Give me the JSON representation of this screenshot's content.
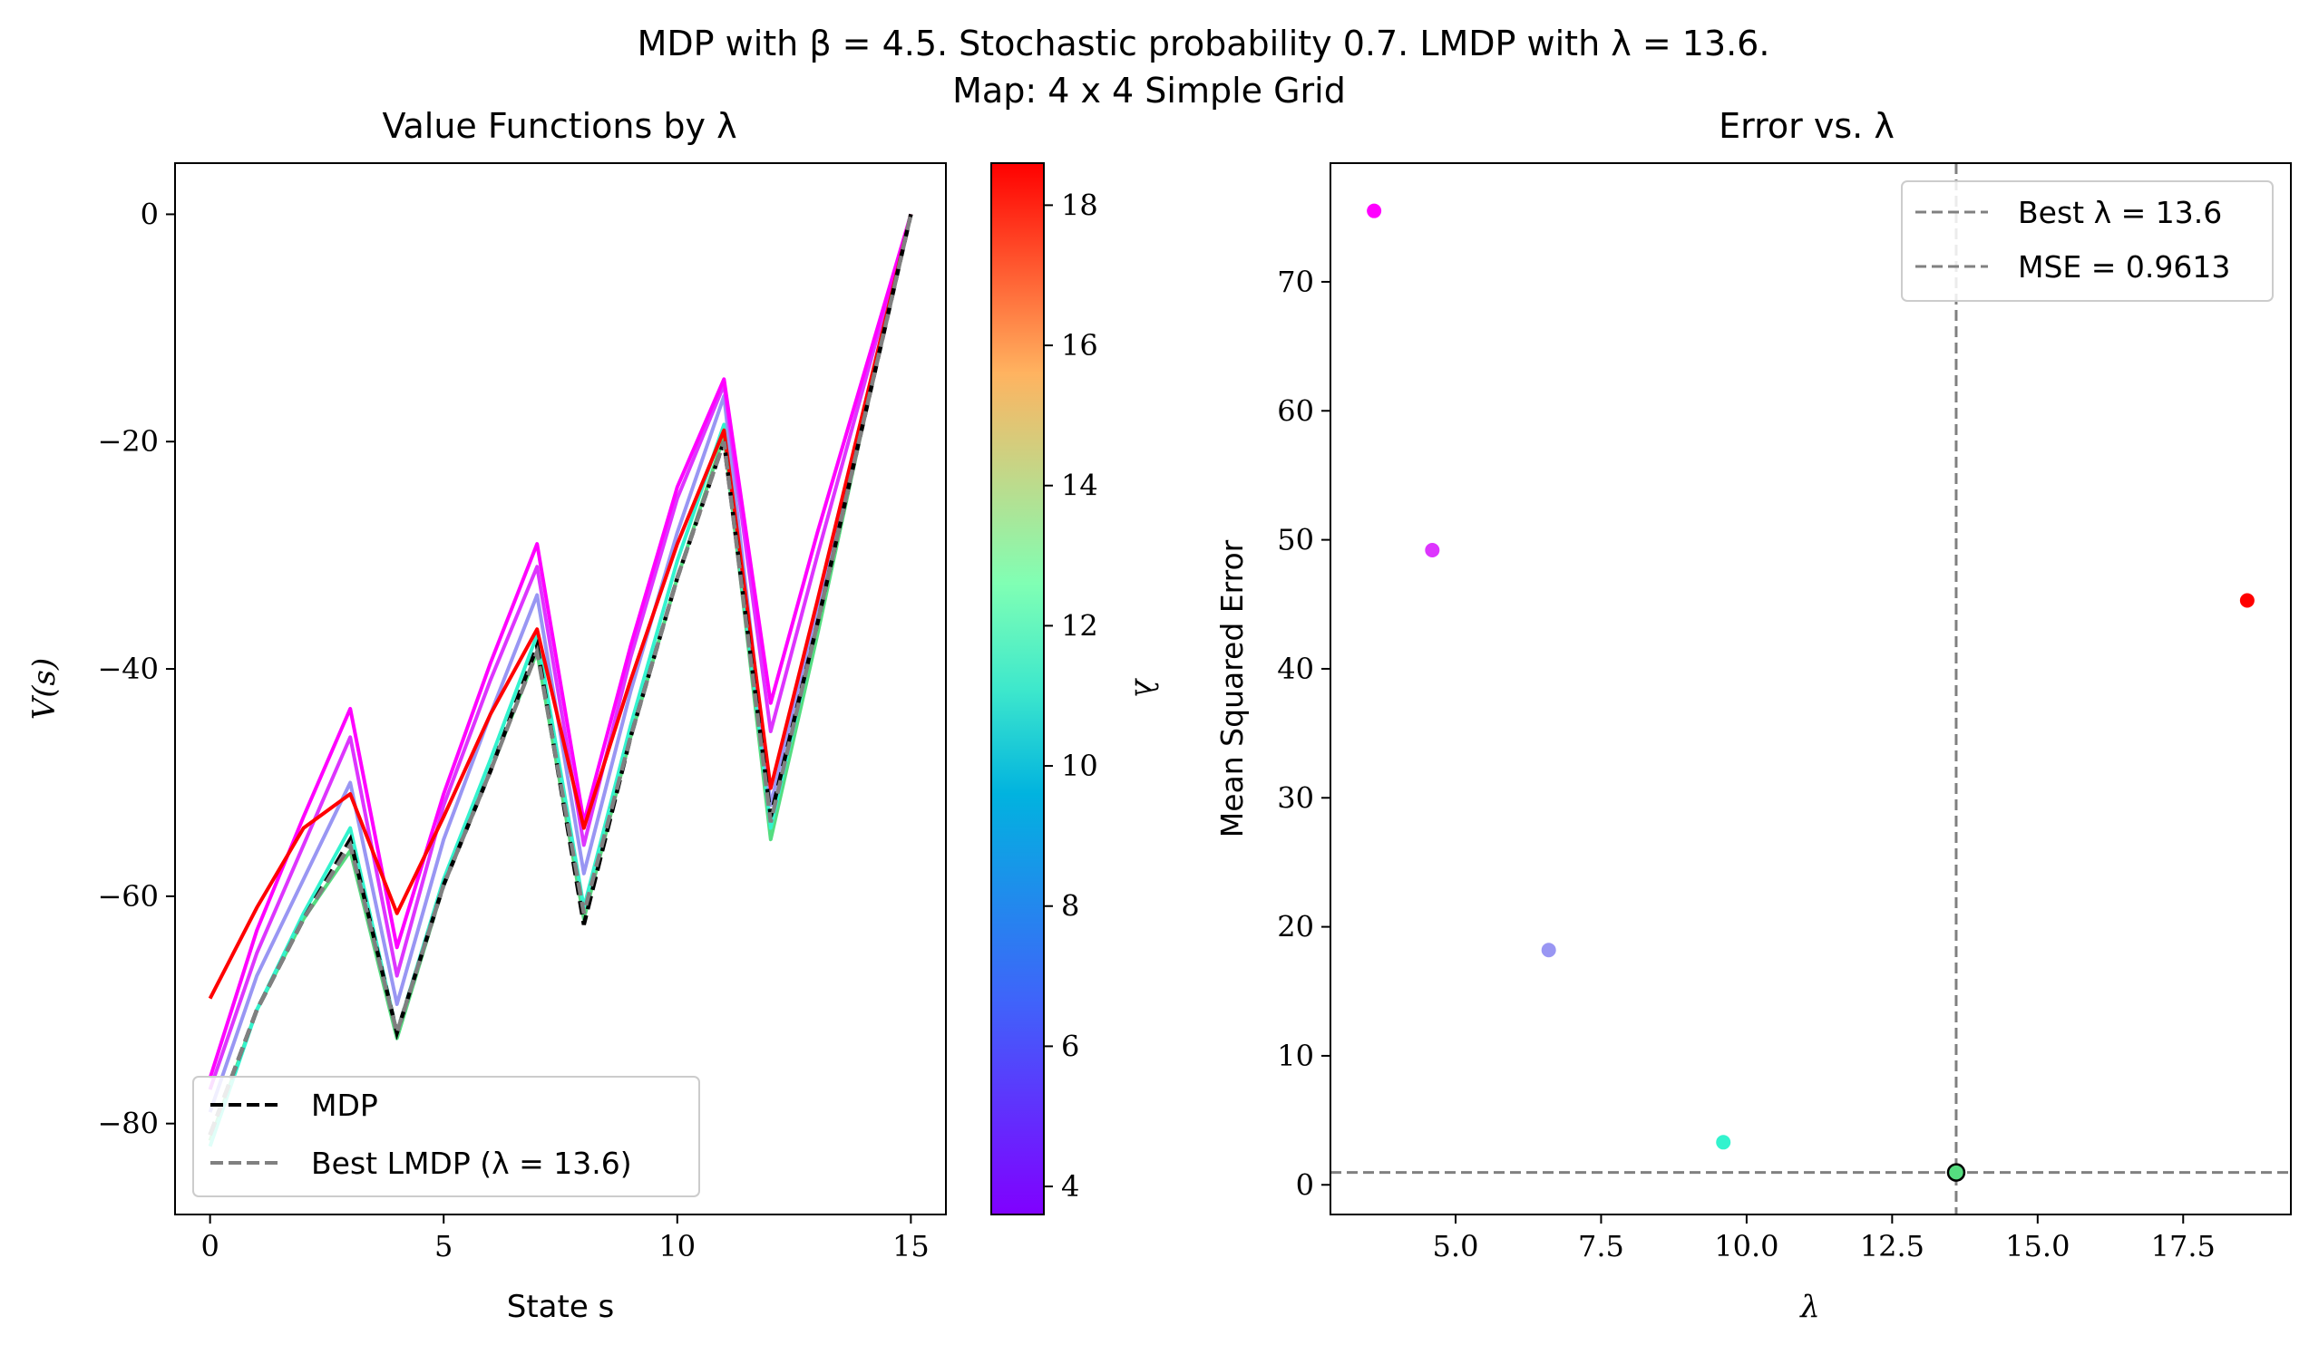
{
  "figure": {
    "title_line1": "MDP with β = 4.5. Stochastic probability 0.7. LMDP with λ = 13.6.",
    "title_line2": "Map: 4 x 4 Simple Grid"
  },
  "chart_data": [
    {
      "type": "line",
      "title": "Value Functions by λ",
      "xlabel": "State s",
      "ylabel": "V(s)",
      "xlim": [
        -0.75,
        15.75
      ],
      "ylim": [
        -88,
        4.5
      ],
      "xticks": [
        0,
        5,
        10,
        15
      ],
      "yticks": [
        0,
        -20,
        -40,
        -60,
        -80
      ],
      "ytick_labels": [
        "0",
        "−20",
        "−40",
        "−60",
        "−80"
      ],
      "grid": false,
      "legend_position": "lower-left",
      "x": [
        0,
        1,
        2,
        3,
        4,
        5,
        6,
        7,
        8,
        9,
        10,
        11,
        12,
        13,
        14,
        15
      ],
      "lambda_series": [
        {
          "lambda": 13.6,
          "values": [
            -81.5,
            -70,
            -62,
            -56,
            -72.5,
            -59,
            -49,
            -38.5,
            -62,
            -46,
            -32,
            -19.5,
            -55,
            -37,
            -18,
            0
          ]
        },
        {
          "lambda": 9.6,
          "values": [
            -82,
            -70,
            -61.5,
            -54,
            -72,
            -58.5,
            -48,
            -37,
            -61,
            -45,
            -30.5,
            -18.5,
            -54,
            -36,
            -18,
            0
          ]
        },
        {
          "lambda": 6.6,
          "values": [
            -79,
            -67,
            -58.5,
            -50,
            -69.5,
            -55,
            -44,
            -33.5,
            -58,
            -42,
            -28,
            -16,
            -52,
            -34.5,
            -17,
            0
          ]
        },
        {
          "lambda": 4.6,
          "values": [
            -77,
            -65,
            -55.5,
            -46,
            -67,
            -52,
            -41,
            -31,
            -55.5,
            -39,
            -25,
            -15,
            -45.5,
            -30,
            -15,
            0
          ]
        },
        {
          "lambda": 3.6,
          "values": [
            -76,
            -63,
            -53,
            -43.5,
            -64.5,
            -51,
            -39.5,
            -29,
            -53.5,
            -38,
            -24,
            -14.5,
            -43,
            -28,
            -14,
            0
          ]
        },
        {
          "lambda": 18.6,
          "values": [
            -69,
            -61,
            -54,
            -51,
            -61.5,
            -53,
            -44,
            -36.5,
            -54,
            -41,
            -29,
            -19,
            -50.5,
            -34,
            -17,
            0
          ]
        }
      ],
      "series": [
        {
          "name": "MDP",
          "color": "#000000",
          "style": "dashed",
          "values": [
            -81,
            -70,
            -62,
            -55,
            -72,
            -59,
            -49,
            -38,
            -62.5,
            -46,
            -32,
            -20,
            -53,
            -36,
            -18,
            0
          ]
        },
        {
          "name": "Best LMDP (λ = 13.6)",
          "color": "#808080",
          "style": "dashed",
          "values": [
            -81,
            -70,
            -62,
            -55.5,
            -72,
            -59,
            -49,
            -38.5,
            -61.5,
            -46,
            -32,
            -20,
            -53.5,
            -36,
            -18,
            0
          ]
        }
      ]
    },
    {
      "type": "colorbar",
      "label": "λ",
      "range": [
        3.6,
        18.6
      ],
      "ticks": [
        4,
        6,
        8,
        10,
        12,
        14,
        16,
        18
      ],
      "colormap": "rainbow"
    },
    {
      "type": "scatter",
      "title": "Error vs. λ",
      "xlabel": "λ",
      "ylabel": "Mean Squared Error",
      "xlim": [
        2.85,
        19.35
      ],
      "ylim": [
        -2.3,
        79.2
      ],
      "xticks": [
        5.0,
        7.5,
        10.0,
        12.5,
        15.0,
        17.5
      ],
      "xtick_labels": [
        "5.0",
        "7.5",
        "10.0",
        "12.5",
        "15.0",
        "17.5"
      ],
      "yticks": [
        0,
        10,
        20,
        30,
        40,
        50,
        60,
        70
      ],
      "grid": false,
      "legend_position": "top-right",
      "points": [
        {
          "x": 3.6,
          "y": 75.5
        },
        {
          "x": 4.6,
          "y": 49.2
        },
        {
          "x": 6.6,
          "y": 18.2
        },
        {
          "x": 9.6,
          "y": 3.3
        },
        {
          "x": 13.6,
          "y": 0.9613
        },
        {
          "x": 18.6,
          "y": 45.3
        }
      ],
      "best_point": {
        "x": 13.6,
        "y": 0.9613
      },
      "reference_lines": [
        {
          "orientation": "vertical",
          "value": 13.6,
          "label": "Best λ = 13.6",
          "color": "#808080"
        },
        {
          "orientation": "horizontal",
          "value": 0.9613,
          "label": "MSE = 0.9613",
          "color": "#808080"
        }
      ]
    }
  ]
}
